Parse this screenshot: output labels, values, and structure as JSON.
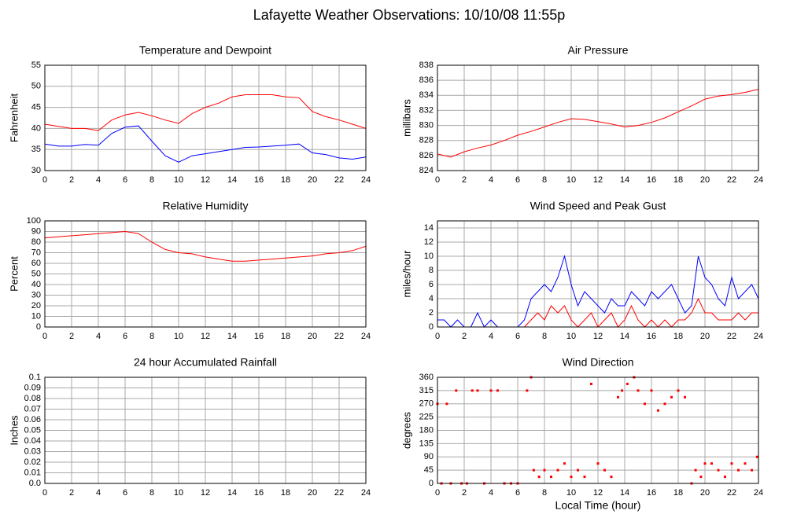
{
  "title": "Lafayette Weather Observations: 10/10/08 11:55p",
  "chart_data": [
    {
      "type": "line",
      "title": "Temperature and Dewpoint",
      "ylabel": "Fahrenheit",
      "xlim": [
        0,
        24
      ],
      "xticks": [
        0,
        2,
        4,
        6,
        8,
        10,
        12,
        14,
        16,
        18,
        20,
        22,
        24
      ],
      "ylim": [
        30,
        55
      ],
      "yticks": [
        30,
        35,
        40,
        45,
        50,
        55
      ],
      "grid": true,
      "x": [
        0,
        1,
        2,
        3,
        4,
        5,
        6,
        7,
        8,
        9,
        10,
        11,
        12,
        13,
        14,
        15,
        16,
        17,
        18,
        19,
        20,
        21,
        22,
        23,
        24
      ],
      "series": [
        {
          "color": "#ff0000",
          "values": [
            41,
            40.5,
            40,
            40,
            39.5,
            42,
            43.2,
            43.8,
            43,
            42,
            41.2,
            43.5,
            45,
            46,
            47.5,
            48,
            48,
            48,
            47.5,
            47.3,
            44,
            42.8,
            42,
            41,
            40
          ]
        },
        {
          "color": "#0000ff",
          "values": [
            36.3,
            35.8,
            35.8,
            36.2,
            36,
            38.8,
            40.3,
            40.6,
            37,
            33.5,
            32,
            33.5,
            34,
            34.5,
            35,
            35.5,
            35.6,
            35.8,
            36,
            36.3,
            34.2,
            33.8,
            33,
            32.7,
            33.2
          ]
        }
      ]
    },
    {
      "type": "line",
      "title": "Air Pressure",
      "ylabel": "millibars",
      "xlim": [
        0,
        24
      ],
      "xticks": [
        0,
        2,
        4,
        6,
        8,
        10,
        12,
        14,
        16,
        18,
        20,
        22,
        24
      ],
      "ylim": [
        824,
        838
      ],
      "yticks": [
        824,
        826,
        828,
        830,
        832,
        834,
        836,
        838
      ],
      "grid": true,
      "x": [
        0,
        1,
        2,
        3,
        4,
        5,
        6,
        7,
        8,
        9,
        10,
        11,
        12,
        13,
        14,
        15,
        16,
        17,
        18,
        19,
        20,
        21,
        22,
        23,
        24
      ],
      "series": [
        {
          "color": "#ff0000",
          "values": [
            826.2,
            825.8,
            826.5,
            827,
            827.4,
            828,
            828.7,
            829.2,
            829.8,
            830.4,
            830.9,
            830.8,
            830.5,
            830.2,
            829.8,
            830,
            830.4,
            831,
            831.8,
            832.6,
            833.5,
            833.9,
            834.1,
            834.4,
            834.8
          ]
        }
      ]
    },
    {
      "type": "line",
      "title": "Relative Humidity",
      "ylabel": "Percent",
      "xlim": [
        0,
        24
      ],
      "xticks": [
        0,
        2,
        4,
        6,
        8,
        10,
        12,
        14,
        16,
        18,
        20,
        22,
        24
      ],
      "ylim": [
        0,
        100
      ],
      "yticks": [
        0,
        10,
        20,
        30,
        40,
        50,
        60,
        70,
        80,
        90,
        100
      ],
      "grid": true,
      "x": [
        0,
        1,
        2,
        3,
        4,
        5,
        6,
        7,
        8,
        9,
        10,
        11,
        12,
        13,
        14,
        15,
        16,
        17,
        18,
        19,
        20,
        21,
        22,
        23,
        24
      ],
      "series": [
        {
          "color": "#ff0000",
          "values": [
            84,
            85,
            86,
            87,
            88,
            89,
            90,
            88,
            80,
            73,
            70,
            69,
            66,
            64,
            62,
            62,
            63,
            64,
            65,
            66,
            67,
            69,
            70,
            72,
            76
          ]
        }
      ]
    },
    {
      "type": "line",
      "title": "Wind Speed and Peak Gust",
      "ylabel": "miles/hour",
      "xlim": [
        0,
        24
      ],
      "xticks": [
        0,
        2,
        4,
        6,
        8,
        10,
        12,
        14,
        16,
        18,
        20,
        22,
        24
      ],
      "ylim": [
        0,
        15
      ],
      "yticks": [
        0,
        2,
        4,
        6,
        8,
        10,
        12,
        14
      ],
      "grid": true,
      "x": [
        0,
        0.5,
        1,
        1.5,
        2,
        2.5,
        3,
        3.5,
        4,
        4.5,
        5,
        5.5,
        6,
        6.5,
        7,
        7.5,
        8,
        8.5,
        9,
        9.5,
        10,
        10.5,
        11,
        11.5,
        12,
        12.5,
        13,
        13.5,
        14,
        14.5,
        15,
        15.5,
        16,
        16.5,
        17,
        17.5,
        18,
        18.5,
        19,
        19.5,
        20,
        20.5,
        21,
        21.5,
        22,
        22.5,
        23,
        23.5,
        24
      ],
      "series": [
        {
          "color": "#0000ff",
          "values": [
            1,
            1,
            0,
            1,
            0,
            0,
            2,
            0,
            1,
            0,
            0,
            0,
            0,
            1,
            4,
            5,
            6,
            5,
            7,
            10,
            6,
            3,
            5,
            4,
            3,
            2,
            4,
            3,
            3,
            5,
            4,
            3,
            5,
            4,
            5,
            6,
            4,
            2,
            3,
            10,
            7,
            6,
            4,
            3,
            7,
            4,
            5,
            6,
            4
          ]
        },
        {
          "color": "#ff0000",
          "values": [
            0,
            0,
            0,
            0,
            0,
            0,
            0,
            0,
            0,
            0,
            0,
            0,
            0,
            0,
            1,
            2,
            1,
            3,
            2,
            3,
            1,
            0,
            1,
            2,
            0,
            1,
            2,
            0,
            1,
            3,
            1,
            0,
            1,
            0,
            1,
            0,
            1,
            1,
            2,
            4,
            2,
            2,
            1,
            1,
            1,
            2,
            1,
            2,
            2
          ]
        }
      ]
    },
    {
      "type": "line",
      "title": "24 hour Accumulated Rainfall",
      "ylabel": "Inches",
      "xlim": [
        0,
        24
      ],
      "xticks": [
        0,
        2,
        4,
        6,
        8,
        10,
        12,
        14,
        16,
        18,
        20,
        22,
        24
      ],
      "ylim": [
        0,
        0.1
      ],
      "yticks": [
        {
          "value": 0,
          "label": "0.0"
        },
        0.01,
        0.02,
        0.03,
        0.04,
        0.05,
        0.06,
        0.07,
        0.08,
        0.09,
        0.1
      ],
      "grid": true,
      "x": [
        0,
        24
      ],
      "series": [
        {
          "color": "#ff0000",
          "values": [
            0,
            0
          ]
        }
      ]
    },
    {
      "type": "scatter",
      "title": "Wind Direction",
      "ylabel": "degrees",
      "xlabel": "Local Time (hour)",
      "xlim": [
        0,
        24
      ],
      "xticks": [
        0,
        2,
        4,
        6,
        8,
        10,
        12,
        14,
        16,
        18,
        20,
        22,
        24
      ],
      "ylim": [
        0,
        360
      ],
      "yticks": [
        0,
        45,
        90,
        135,
        180,
        225,
        270,
        315,
        360
      ],
      "grid": true,
      "color": "#ff0000",
      "x": [
        0,
        0.3,
        0.7,
        1,
        1.4,
        1.8,
        2.2,
        2.6,
        3,
        3.5,
        4,
        4.5,
        5,
        5.5,
        6,
        6.7,
        7,
        7.2,
        7.6,
        8,
        8.5,
        9,
        9.5,
        10,
        10.5,
        11,
        11.5,
        12,
        12.5,
        13,
        13.5,
        13.8,
        14.2,
        14.7,
        15,
        15.5,
        16,
        16.5,
        17,
        17.5,
        18,
        18.5,
        19,
        19.3,
        19.7,
        20,
        20.5,
        21,
        21.5,
        22,
        22.5,
        23,
        23.5,
        23.9
      ],
      "values": [
        270,
        0,
        270,
        0,
        315,
        0,
        0,
        315,
        315,
        0,
        315,
        315,
        0,
        0,
        0,
        315,
        360,
        45,
        22.5,
        45,
        22.5,
        45,
        67.5,
        22.5,
        45,
        22.5,
        337.5,
        67.5,
        45,
        22.5,
        292.5,
        315,
        337.5,
        360,
        315,
        270,
        315,
        247.5,
        270,
        292.5,
        315,
        292.5,
        0,
        45,
        22.5,
        67.5,
        67.5,
        45,
        22.5,
        67.5,
        45,
        67.5,
        45,
        90
      ]
    }
  ]
}
